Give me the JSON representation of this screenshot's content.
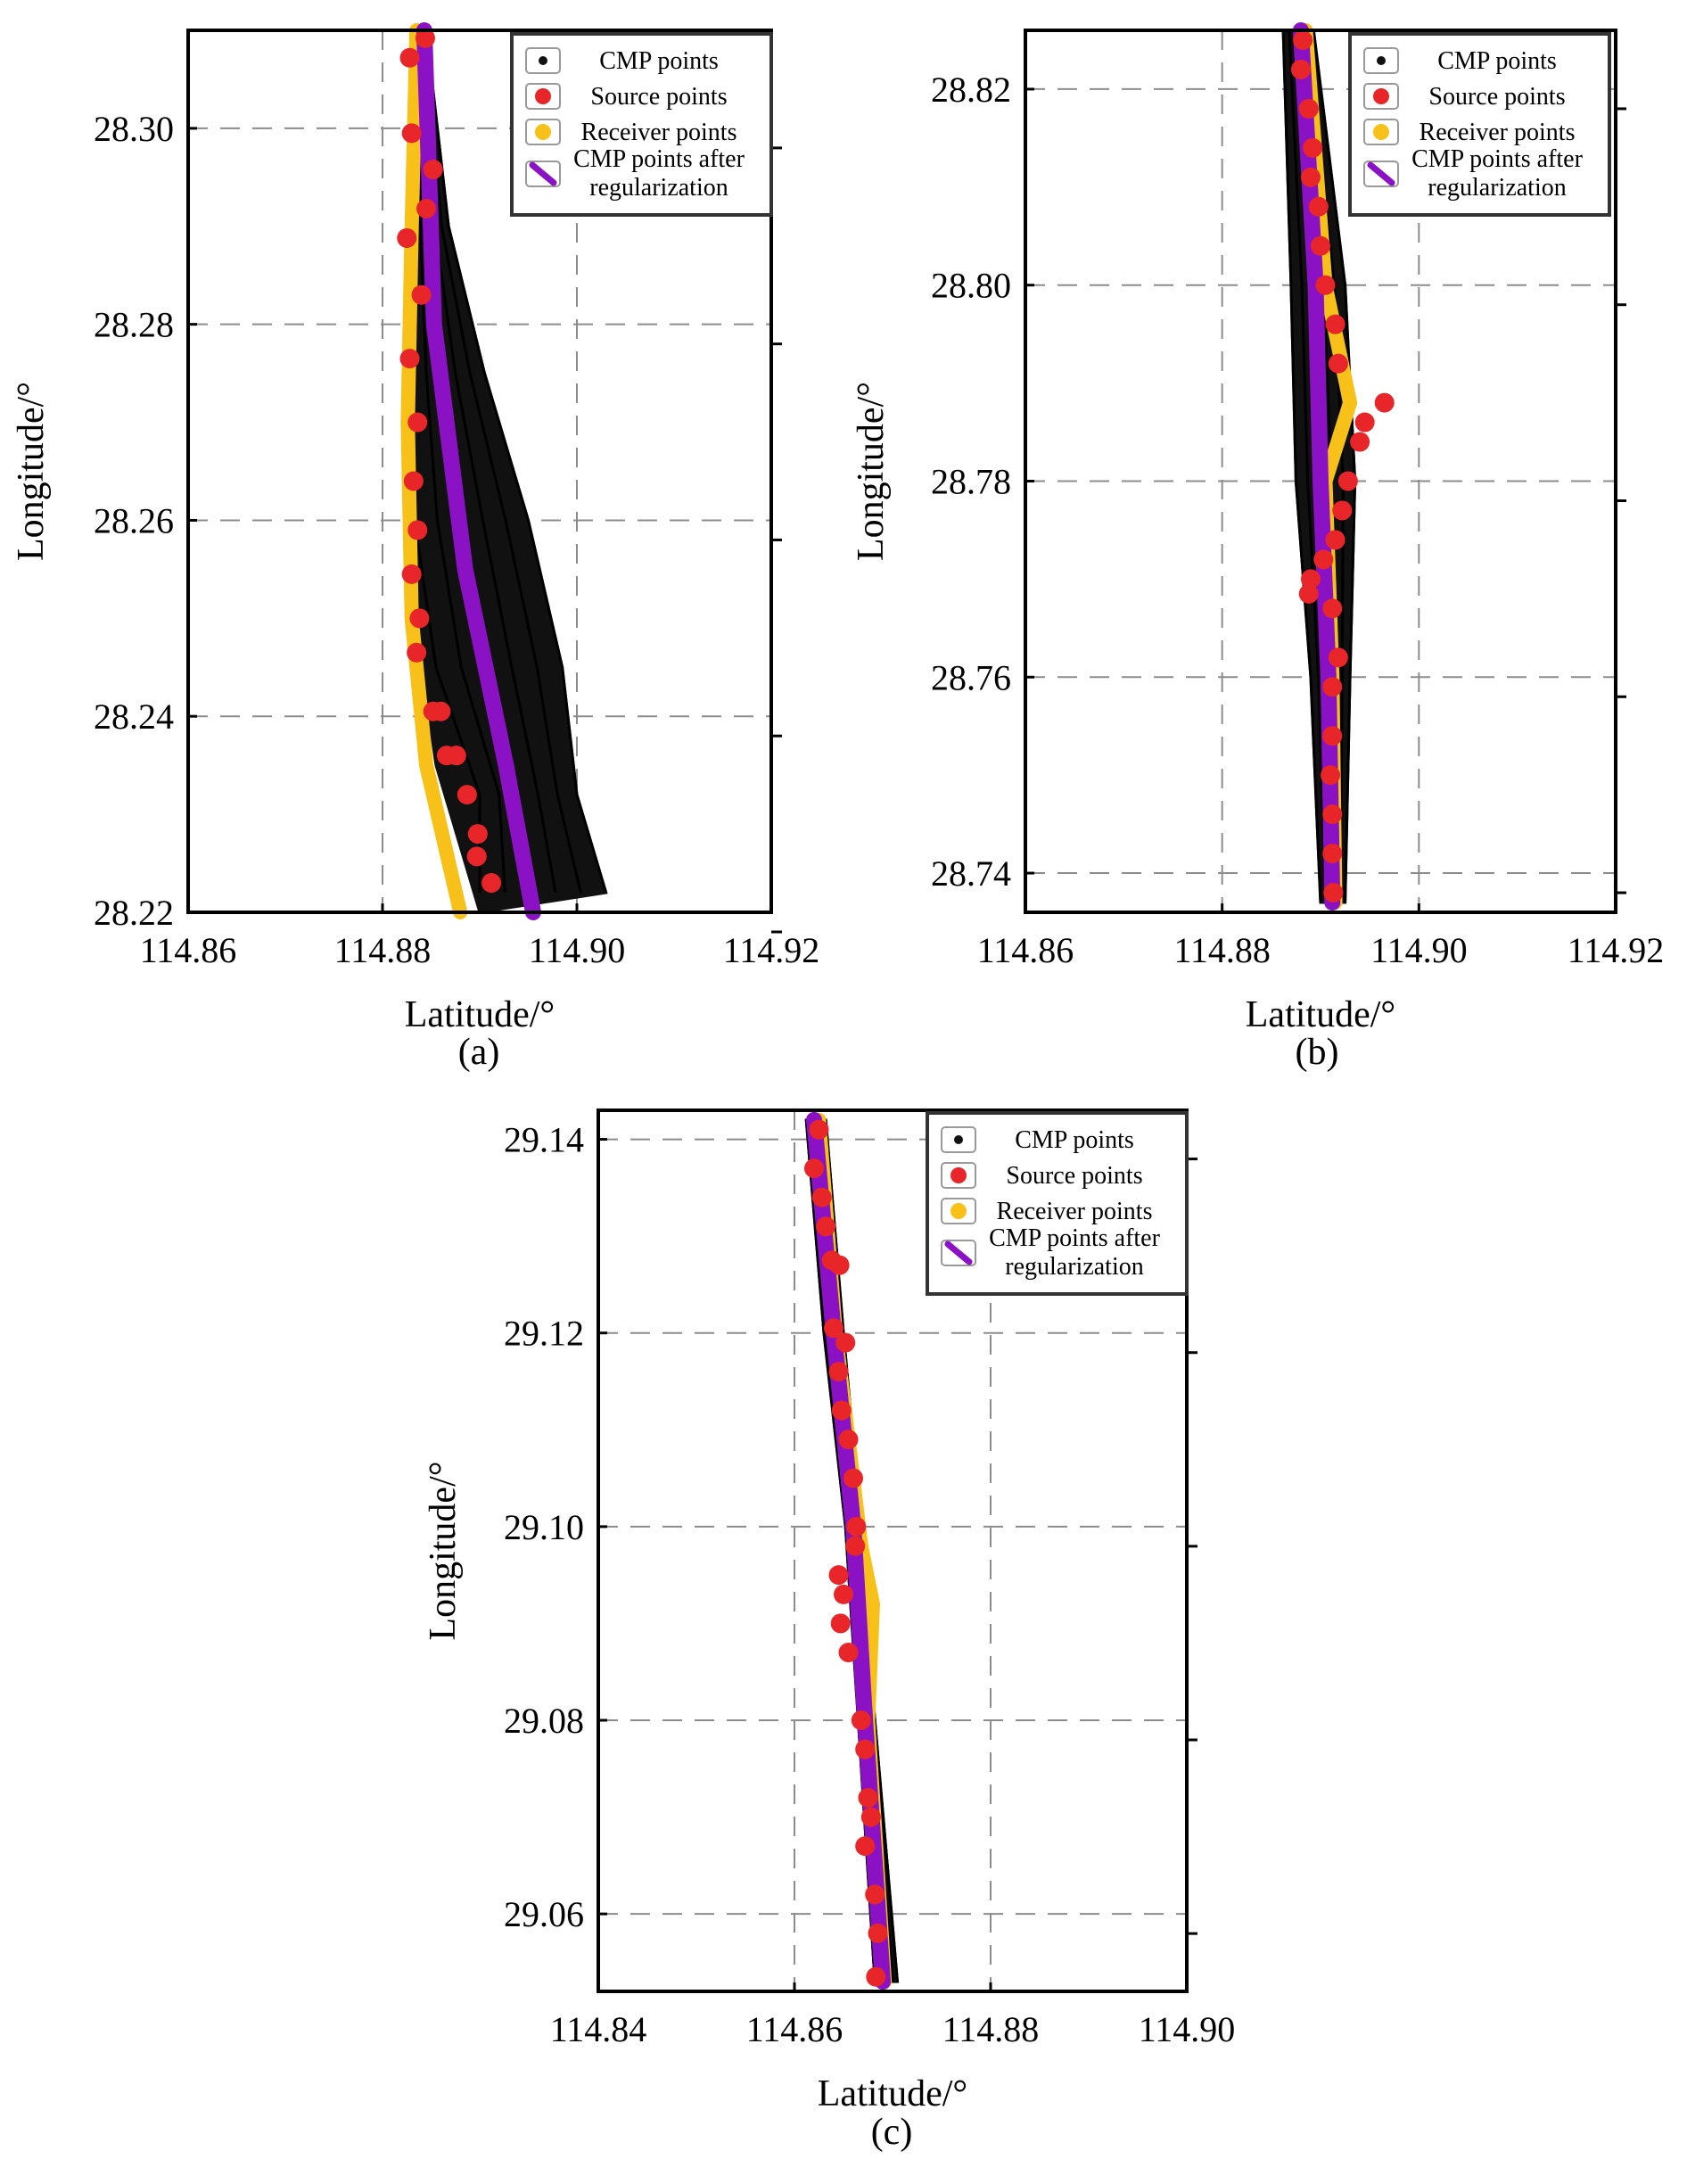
{
  "legend": {
    "cmp": "CMP points",
    "source": "Source points",
    "receiver": "Receiver points",
    "regularized_line1": "CMP points after",
    "regularized_line2": "regularization"
  },
  "colors": {
    "cmp": "#111111",
    "source": "#e8262a",
    "receiver": "#f7c11a",
    "regularized": "#8a12c4",
    "grid": "#8c8c8c"
  },
  "chart_data": [
    {
      "type": "scatter",
      "panel_label": "(a)",
      "xlabel": "Latitude/°",
      "ylabel": "Longitude/°",
      "xlim": [
        114.86,
        114.92
      ],
      "ylim": [
        28.22,
        28.31
      ],
      "xticks": [
        "114.86",
        "114.88",
        "114.90",
        "114.92"
      ],
      "yticks": [
        "28.22",
        "28.24",
        "28.26",
        "28.28",
        "28.30"
      ],
      "grid": true,
      "legend_position": "top-right",
      "regularized_line": [
        [
          114.8843,
          28.31
        ],
        [
          114.8853,
          28.28
        ],
        [
          114.8885,
          28.255
        ],
        [
          114.8927,
          28.235
        ],
        [
          114.8955,
          28.22
        ]
      ],
      "receiver_line": [
        [
          114.8835,
          28.31
        ],
        [
          114.883,
          28.29
        ],
        [
          114.8826,
          28.27
        ],
        [
          114.883,
          28.25
        ],
        [
          114.8845,
          28.235
        ],
        [
          114.888,
          28.22
        ]
      ],
      "cmp_strip_outer": [
        [
          114.8845,
          28.31
        ],
        [
          114.8868,
          28.29
        ],
        [
          114.8905,
          28.275
        ],
        [
          114.895,
          28.26
        ],
        [
          114.8985,
          28.245
        ],
        [
          114.9,
          28.232
        ],
        [
          114.903,
          28.222
        ]
      ],
      "cmp_strip_inner": [
        [
          114.8835,
          28.31
        ],
        [
          114.8832,
          28.29
        ],
        [
          114.883,
          28.27
        ],
        [
          114.8833,
          28.25
        ],
        [
          114.8855,
          28.235
        ],
        [
          114.89,
          28.22
        ]
      ],
      "source_points": [
        [
          114.8828,
          28.3072
        ],
        [
          114.8844,
          28.3092
        ],
        [
          114.883,
          28.2995
        ],
        [
          114.8852,
          28.2958
        ],
        [
          114.8845,
          28.2918
        ],
        [
          114.8825,
          28.2888
        ],
        [
          114.884,
          28.283
        ],
        [
          114.8828,
          28.2765
        ],
        [
          114.8836,
          28.27
        ],
        [
          114.8832,
          28.264
        ],
        [
          114.8836,
          28.259
        ],
        [
          114.883,
          28.2545
        ],
        [
          114.8838,
          28.25
        ],
        [
          114.8835,
          28.2465
        ],
        [
          114.8852,
          28.2405
        ],
        [
          114.886,
          28.2405
        ],
        [
          114.8866,
          28.236
        ],
        [
          114.8876,
          28.236
        ],
        [
          114.8887,
          28.232
        ],
        [
          114.8898,
          28.228
        ],
        [
          114.8897,
          28.2257
        ],
        [
          114.8912,
          28.223
        ]
      ]
    },
    {
      "type": "scatter",
      "panel_label": "(b)",
      "xlabel": "Latitude/°",
      "ylabel": "Longitude/°",
      "xlim": [
        114.86,
        114.92
      ],
      "ylim": [
        28.736,
        28.826
      ],
      "xticks": [
        "114.86",
        "114.88",
        "114.90",
        "114.92"
      ],
      "yticks": [
        "28.74",
        "28.76",
        "28.78",
        "28.80",
        "28.82"
      ],
      "grid": true,
      "legend_position": "top-right",
      "regularized_line": [
        [
          114.888,
          28.826
        ],
        [
          114.8895,
          28.8
        ],
        [
          114.89,
          28.78
        ],
        [
          114.8908,
          28.76
        ],
        [
          114.8912,
          28.737
        ]
      ],
      "receiver_line": [
        [
          114.8885,
          28.826
        ],
        [
          114.8905,
          28.8
        ],
        [
          114.893,
          28.788
        ],
        [
          114.8905,
          28.78
        ],
        [
          114.8912,
          28.76
        ],
        [
          114.8915,
          28.737
        ]
      ],
      "cmp_strip_outer": [
        [
          114.8893,
          28.826
        ],
        [
          114.8925,
          28.8
        ],
        [
          114.8935,
          28.78
        ],
        [
          114.893,
          28.76
        ],
        [
          114.8925,
          28.737
        ]
      ],
      "cmp_strip_inner": [
        [
          114.8862,
          28.826
        ],
        [
          114.887,
          28.8
        ],
        [
          114.8875,
          28.78
        ],
        [
          114.889,
          28.76
        ],
        [
          114.89,
          28.737
        ]
      ],
      "source_points": [
        [
          114.8882,
          28.825
        ],
        [
          114.888,
          28.822
        ],
        [
          114.8888,
          28.818
        ],
        [
          114.8892,
          28.814
        ],
        [
          114.889,
          28.811
        ],
        [
          114.8898,
          28.808
        ],
        [
          114.89,
          28.804
        ],
        [
          114.8905,
          28.8
        ],
        [
          114.8915,
          28.796
        ],
        [
          114.8918,
          28.792
        ],
        [
          114.8965,
          28.788
        ],
        [
          114.8945,
          28.786
        ],
        [
          114.894,
          28.784
        ],
        [
          114.8928,
          28.78
        ],
        [
          114.8922,
          28.777
        ],
        [
          114.8915,
          28.774
        ],
        [
          114.8903,
          28.772
        ],
        [
          114.889,
          28.77
        ],
        [
          114.8888,
          28.7685
        ],
        [
          114.8912,
          28.767
        ],
        [
          114.8918,
          28.762
        ],
        [
          114.8912,
          28.759
        ],
        [
          114.8912,
          28.754
        ],
        [
          114.891,
          28.75
        ],
        [
          114.8912,
          28.746
        ],
        [
          114.8912,
          28.742
        ],
        [
          114.8913,
          28.738
        ]
      ]
    },
    {
      "type": "scatter",
      "panel_label": "(c)",
      "xlabel": "Latitude/°",
      "ylabel": "Longitude/°",
      "xlim": [
        114.84,
        114.9
      ],
      "ylim": [
        29.052,
        29.143
      ],
      "xticks": [
        "114.84",
        "114.86",
        "114.88",
        "114.90"
      ],
      "yticks": [
        "29.06",
        "29.08",
        "29.10",
        "29.12",
        "29.14"
      ],
      "grid": true,
      "legend_position": "top-right",
      "regularized_line": [
        [
          114.862,
          29.142
        ],
        [
          114.864,
          29.12
        ],
        [
          114.866,
          29.1
        ],
        [
          114.8672,
          29.08
        ],
        [
          114.869,
          29.053
        ]
      ],
      "receiver_line": [
        [
          114.8625,
          29.142
        ],
        [
          114.8642,
          29.12
        ],
        [
          114.8668,
          29.098
        ],
        [
          114.868,
          29.092
        ],
        [
          114.8675,
          29.08
        ],
        [
          114.8692,
          29.053
        ]
      ],
      "cmp_strip_outer": [
        [
          114.8632,
          29.142
        ],
        [
          114.865,
          29.12
        ],
        [
          114.8668,
          29.1
        ],
        [
          114.8682,
          29.08
        ],
        [
          114.8705,
          29.053
        ]
      ],
      "cmp_strip_inner": [
        [
          114.8612,
          29.142
        ],
        [
          114.863,
          29.12
        ],
        [
          114.8652,
          29.1
        ],
        [
          114.8665,
          29.08
        ],
        [
          114.8682,
          29.053
        ]
      ],
      "source_points": [
        [
          114.8625,
          29.141
        ],
        [
          114.862,
          29.137
        ],
        [
          114.8628,
          29.134
        ],
        [
          114.8632,
          29.131
        ],
        [
          114.8638,
          29.1275
        ],
        [
          114.8646,
          29.127
        ],
        [
          114.864,
          29.1205
        ],
        [
          114.8652,
          29.119
        ],
        [
          114.8645,
          29.116
        ],
        [
          114.8648,
          29.112
        ],
        [
          114.8655,
          29.109
        ],
        [
          114.866,
          29.105
        ],
        [
          114.8663,
          29.1
        ],
        [
          114.8662,
          29.098
        ],
        [
          114.8645,
          29.095
        ],
        [
          114.865,
          29.093
        ],
        [
          114.8647,
          29.09
        ],
        [
          114.8655,
          29.087
        ],
        [
          114.8668,
          29.08
        ],
        [
          114.8672,
          29.077
        ],
        [
          114.8675,
          29.072
        ],
        [
          114.8678,
          29.07
        ],
        [
          114.8672,
          29.067
        ],
        [
          114.8682,
          29.062
        ],
        [
          114.8685,
          29.058
        ],
        [
          114.8683,
          29.0535
        ]
      ]
    }
  ]
}
